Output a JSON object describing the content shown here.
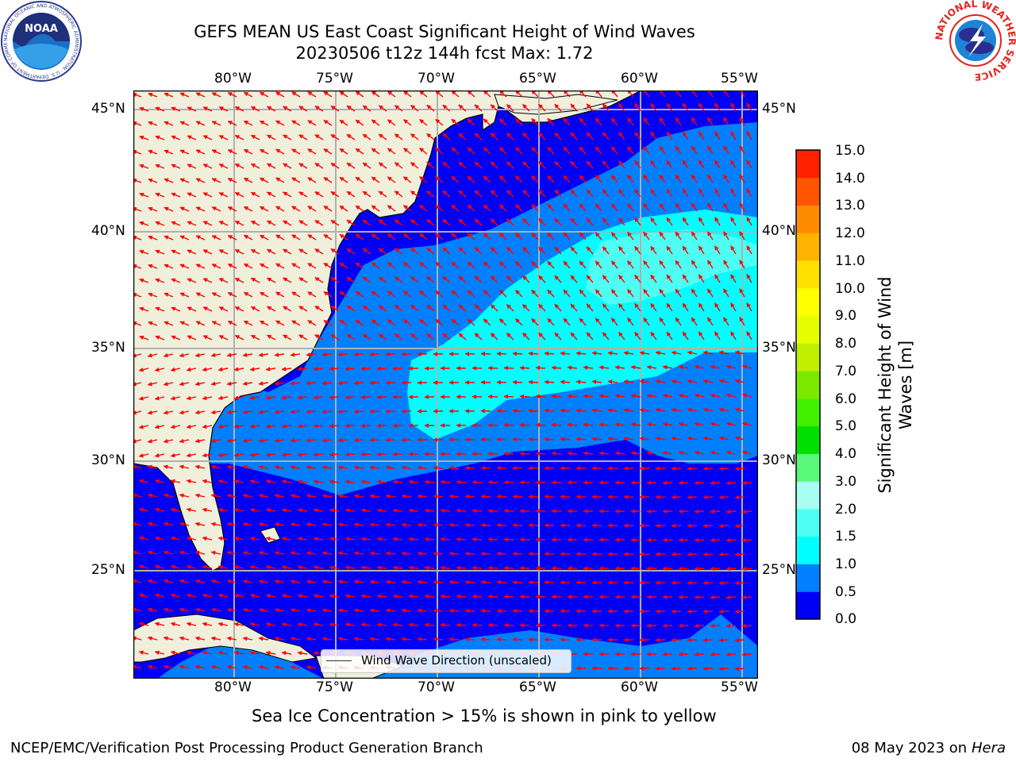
{
  "title": {
    "line1": "GEFS MEAN US East Coast Significant Height of Wind Waves",
    "line2": "20230506 t12z 144h fcst   Max: 1.72"
  },
  "logos": {
    "left": {
      "text": "NOAA",
      "ring_text": "NATIONAL OCEANIC AND ATMOSPHERIC ADMINISTRATION · U.S. DEPARTMENT OF COMMERCE"
    },
    "right": {
      "ring_text": "NATIONAL WEATHER SERVICE"
    }
  },
  "map": {
    "lon_ticks": [
      "80°W",
      "75°W",
      "70°W",
      "65°W",
      "60°W",
      "55°W"
    ],
    "lat_ticks": [
      "45°N",
      "40°N",
      "35°N",
      "30°N",
      "25°N"
    ],
    "legend_label": "Wind Wave Direction (unscaled)",
    "colors": {
      "land": "#efefdc",
      "ocean_0": "#0000f7",
      "ocean_05": "#0080ff",
      "ocean_10": "#00ffff",
      "ocean_15": "#4dfff2",
      "arrow": "#ff0000",
      "grid": "#b0b0b0"
    }
  },
  "colorbar": {
    "label": "Significant Height of Wind Waves [m]",
    "ticks": [
      "15.0",
      "14.0",
      "13.0",
      "12.0",
      "11.0",
      "10.0",
      "9.0",
      "8.0",
      "7.0",
      "6.0",
      "5.0",
      "4.0",
      "3.0",
      "2.0",
      "1.5",
      "1.0",
      "0.5",
      "0.0"
    ],
    "colors": [
      "#0000f7",
      "#0080ff",
      "#00ffff",
      "#4dfff2",
      "#a6fff2",
      "#59f77a",
      "#00e000",
      "#40f000",
      "#7de800",
      "#c0f000",
      "#e6ff00",
      "#ffff00",
      "#ffe000",
      "#ffb300",
      "#ff8c00",
      "#ff5500",
      "#ff2200"
    ]
  },
  "caption": "Sea Ice Concentration > 15% is shown in pink to yellow",
  "footer": {
    "left": "NCEP/EMC/Verification Post Processing Product Generation Branch",
    "date": "08 May 2023 on",
    "machine": "Hera"
  }
}
